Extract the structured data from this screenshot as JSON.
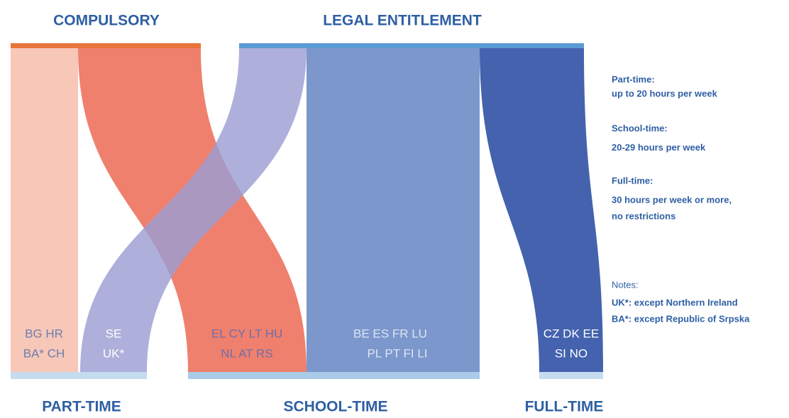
{
  "header": {
    "compulsory": "COMPULSORY",
    "legal_entitlement": "LEGAL ENTITLEMENT"
  },
  "flows": [
    {
      "lines": [
        "BG HR",
        "BA* CH"
      ]
    },
    {
      "lines": [
        "SE",
        "UK*"
      ]
    },
    {
      "lines": [
        "EL CY LT HU",
        "NL AT RS"
      ]
    },
    {
      "lines": [
        "BE  ES  FR  LU",
        "PL  PT  FI  LI"
      ]
    },
    {
      "lines": [
        "CZ DK EE",
        "SI NO"
      ]
    }
  ],
  "footer": {
    "part_time": "PART-TIME",
    "school_time": "SCHOOL-TIME",
    "full_time": "FULL-TIME"
  },
  "legend": [
    {
      "title": "Part-time:",
      "lines": [
        "up to 20 hours per week"
      ]
    },
    {
      "title": "School-time:",
      "lines": [
        "20-29 hours per week"
      ]
    },
    {
      "title": "Full-time:",
      "lines": [
        "30 hours per week or more,",
        "no restrictions"
      ]
    },
    {
      "title": "Notes:",
      "lines": [
        "UK*: except Northern Ireland",
        "BA*: except Republic of Srpska"
      ]
    }
  ]
}
